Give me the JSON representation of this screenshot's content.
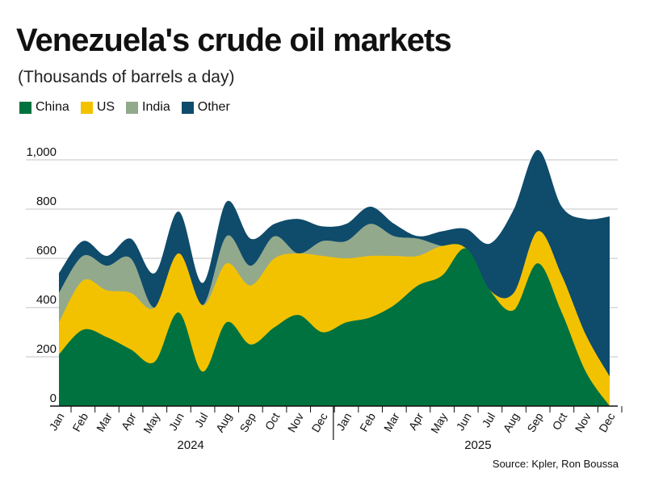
{
  "title": "Venezuela's crude oil markets",
  "subtitle": "(Thousands of barrels a day)",
  "source": "Source: Kpler, Ron Boussa",
  "chart_data": {
    "type": "area",
    "stacked": true,
    "title": "Venezuela's crude oil markets",
    "ylabel": "Thousands of barrels a day",
    "ylim": [
      0,
      1000
    ],
    "yticks": [
      0,
      200,
      400,
      600,
      800,
      1000
    ],
    "ytick_labels": [
      "0",
      "200",
      "400",
      "600",
      "800",
      "1,000"
    ],
    "categories": [
      "Jan",
      "Feb",
      "Mar",
      "Apr",
      "May",
      "Jun",
      "Jul",
      "Aug",
      "Sep",
      "Oct",
      "Nov",
      "Dec",
      "Jan",
      "Feb",
      "Mar",
      "Apr",
      "May",
      "Jun",
      "Jul",
      "Aug",
      "Sep",
      "Oct",
      "Nov",
      "Dec"
    ],
    "years": [
      {
        "label": "2024",
        "months": 12
      },
      {
        "label": "2025",
        "months": 12
      }
    ],
    "legend_position": "top-left",
    "grid": true,
    "series": [
      {
        "name": "China",
        "color": "#00723f",
        "values": [
          210,
          310,
          280,
          230,
          180,
          380,
          140,
          340,
          250,
          320,
          370,
          300,
          340,
          360,
          410,
          490,
          530,
          640,
          470,
          390,
          580,
          380,
          140,
          0
        ]
      },
      {
        "name": "US",
        "color": "#f2c200",
        "values": [
          130,
          200,
          190,
          230,
          220,
          240,
          270,
          240,
          240,
          280,
          250,
          310,
          260,
          250,
          200,
          120,
          120,
          0,
          0,
          70,
          130,
          150,
          150,
          120
        ]
      },
      {
        "name": "India",
        "color": "#93a98c",
        "values": [
          120,
          100,
          100,
          140,
          0,
          0,
          0,
          110,
          80,
          90,
          0,
          60,
          70,
          130,
          80,
          70,
          0,
          0,
          0,
          0,
          0,
          0,
          0,
          0
        ]
      },
      {
        "name": "Other",
        "color": "#0f4b6b",
        "values": [
          80,
          60,
          40,
          80,
          140,
          170,
          90,
          140,
          110,
          50,
          140,
          60,
          70,
          70,
          50,
          10,
          60,
          80,
          190,
          340,
          330,
          280,
          470,
          650
        ]
      }
    ]
  }
}
